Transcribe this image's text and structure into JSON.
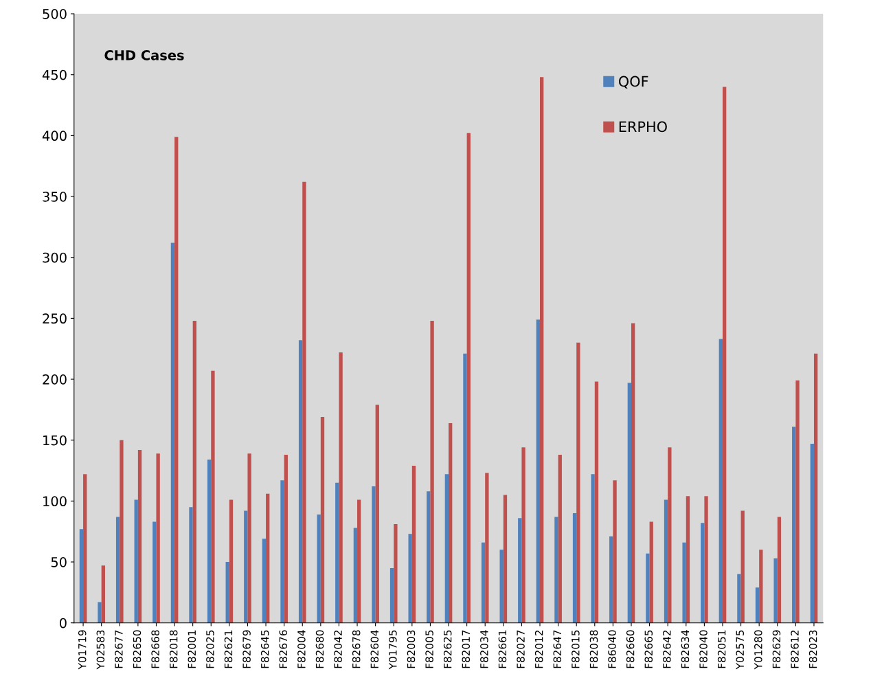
{
  "chart_data": {
    "type": "bar",
    "title": "CHD Cases",
    "categories": [
      "Y01719",
      "Y02583",
      "F82677",
      "F82650",
      "F82668",
      "F82018",
      "F82001",
      "F82025",
      "F82621",
      "F82679",
      "F82645",
      "F82676",
      "F82004",
      "F82680",
      "F82042",
      "F82678",
      "F82604",
      "Y01795",
      "F82003",
      "F82005",
      "F82625",
      "F82017",
      "F82034",
      "F82661",
      "F82027",
      "F82012",
      "F82647",
      "F82015",
      "F82038",
      "F86040",
      "F82660",
      "F82665",
      "F82642",
      "F82634",
      "F82040",
      "F82051",
      "Y02575",
      "Y01280",
      "F82629",
      "F82612",
      "F82023"
    ],
    "series": [
      {
        "name": "QOF",
        "color": "#4f81bd",
        "values": [
          77,
          17,
          87,
          101,
          83,
          312,
          95,
          134,
          50,
          92,
          69,
          117,
          232,
          89,
          115,
          78,
          112,
          45,
          73,
          108,
          122,
          221,
          66,
          60,
          86,
          249,
          87,
          90,
          122,
          71,
          197,
          57,
          101,
          66,
          82,
          233,
          40,
          29,
          53,
          161,
          147
        ]
      },
      {
        "name": "ERPHO",
        "color": "#c0504d",
        "values": [
          122,
          47,
          150,
          142,
          139,
          399,
          248,
          207,
          101,
          139,
          106,
          138,
          362,
          169,
          222,
          101,
          179,
          81,
          129,
          248,
          164,
          402,
          123,
          105,
          144,
          448,
          138,
          230,
          198,
          117,
          246,
          83,
          144,
          104,
          104,
          440,
          92,
          60,
          87,
          199,
          221
        ]
      }
    ],
    "ylim": [
      0,
      500
    ],
    "yticks": [
      0,
      50,
      100,
      150,
      200,
      250,
      300,
      350,
      400,
      450,
      500
    ],
    "grid": false,
    "legend": "top right"
  }
}
